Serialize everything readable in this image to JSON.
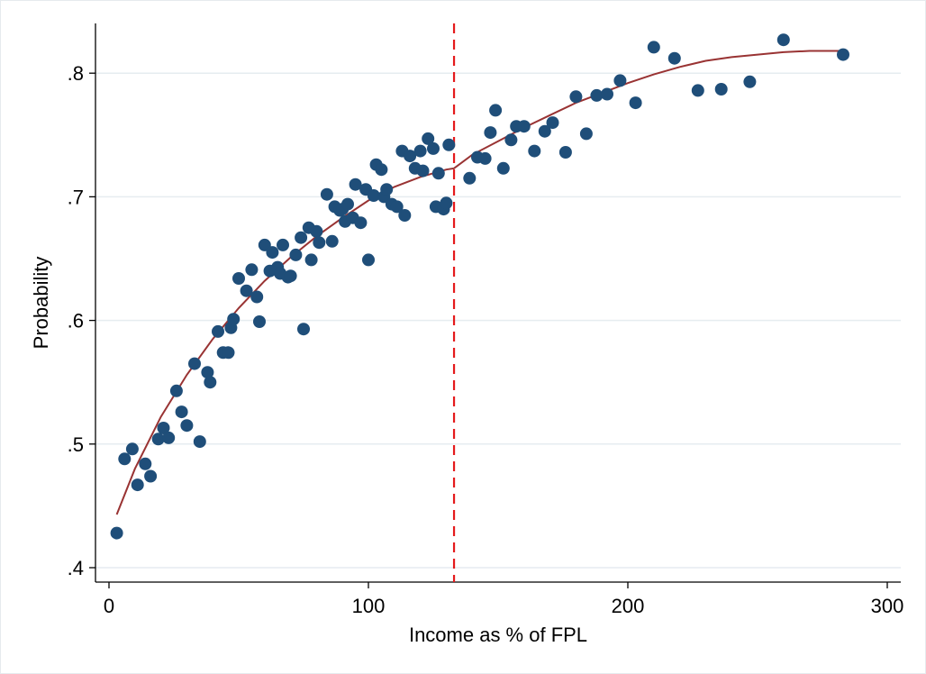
{
  "chart_data": {
    "type": "scatter",
    "title": "",
    "xlabel": "Income as % of FPL",
    "ylabel": "Probability",
    "xlim": [
      -5,
      305
    ],
    "ylim": [
      0.388,
      0.84
    ],
    "x_ticks": [
      0,
      100,
      200,
      300
    ],
    "x_tick_labels": [
      "0",
      "100",
      "200",
      "300"
    ],
    "y_ticks": [
      0.4,
      0.5,
      0.6,
      0.7,
      0.8
    ],
    "y_tick_labels": [
      ".4",
      ".5",
      ".6",
      ".7",
      ".8"
    ],
    "grid": "horizontal",
    "legend": "none",
    "cutoff_x": 133,
    "colors": {
      "points": "#1f4e79",
      "fit_line": "#993333",
      "cutoff_line": "#e41a1c",
      "grid": "#e6ecf0"
    },
    "fit_line": [
      [
        3,
        0.443
      ],
      [
        10,
        0.48
      ],
      [
        20,
        0.522
      ],
      [
        30,
        0.556
      ],
      [
        40,
        0.585
      ],
      [
        50,
        0.61
      ],
      [
        60,
        0.632
      ],
      [
        70,
        0.651
      ],
      [
        80,
        0.668
      ],
      [
        90,
        0.683
      ],
      [
        100,
        0.697
      ],
      [
        110,
        0.708
      ],
      [
        120,
        0.716
      ],
      [
        130,
        0.722
      ],
      [
        133,
        0.723
      ],
      [
        140,
        0.734
      ],
      [
        150,
        0.745
      ],
      [
        160,
        0.756
      ],
      [
        170,
        0.766
      ],
      [
        180,
        0.776
      ],
      [
        190,
        0.784
      ],
      [
        200,
        0.792
      ],
      [
        210,
        0.799
      ],
      [
        220,
        0.805
      ],
      [
        230,
        0.81
      ],
      [
        240,
        0.813
      ],
      [
        250,
        0.815
      ],
      [
        260,
        0.817
      ],
      [
        270,
        0.818
      ],
      [
        283,
        0.818
      ]
    ],
    "series": [
      {
        "points": [
          [
            3,
            0.428
          ],
          [
            6,
            0.488
          ],
          [
            9,
            0.496
          ],
          [
            11,
            0.467
          ],
          [
            14,
            0.484
          ],
          [
            16,
            0.474
          ],
          [
            19,
            0.504
          ],
          [
            21,
            0.513
          ],
          [
            23,
            0.505
          ],
          [
            26,
            0.543
          ],
          [
            28,
            0.526
          ],
          [
            30,
            0.515
          ],
          [
            33,
            0.565
          ],
          [
            35,
            0.502
          ],
          [
            38,
            0.558
          ],
          [
            39,
            0.55
          ],
          [
            42,
            0.591
          ],
          [
            44,
            0.574
          ],
          [
            46,
            0.574
          ],
          [
            47,
            0.594
          ],
          [
            48,
            0.601
          ],
          [
            50,
            0.634
          ],
          [
            53,
            0.624
          ],
          [
            55,
            0.641
          ],
          [
            57,
            0.619
          ],
          [
            58,
            0.599
          ],
          [
            60,
            0.661
          ],
          [
            62,
            0.64
          ],
          [
            63,
            0.655
          ],
          [
            65,
            0.643
          ],
          [
            66,
            0.638
          ],
          [
            67,
            0.661
          ],
          [
            69,
            0.635
          ],
          [
            70,
            0.636
          ],
          [
            72,
            0.653
          ],
          [
            74,
            0.667
          ],
          [
            75,
            0.593
          ],
          [
            77,
            0.675
          ],
          [
            78,
            0.649
          ],
          [
            80,
            0.672
          ],
          [
            81,
            0.663
          ],
          [
            84,
            0.702
          ],
          [
            86,
            0.664
          ],
          [
            87,
            0.692
          ],
          [
            89,
            0.689
          ],
          [
            90,
            0.69
          ],
          [
            91,
            0.68
          ],
          [
            92,
            0.694
          ],
          [
            94,
            0.683
          ],
          [
            95,
            0.71
          ],
          [
            97,
            0.679
          ],
          [
            99,
            0.706
          ],
          [
            100,
            0.649
          ],
          [
            102,
            0.701
          ],
          [
            103,
            0.726
          ],
          [
            105,
            0.722
          ],
          [
            106,
            0.7
          ],
          [
            107,
            0.706
          ],
          [
            109,
            0.694
          ],
          [
            111,
            0.692
          ],
          [
            113,
            0.737
          ],
          [
            114,
            0.685
          ],
          [
            116,
            0.733
          ],
          [
            118,
            0.723
          ],
          [
            120,
            0.737
          ],
          [
            121,
            0.721
          ],
          [
            123,
            0.747
          ],
          [
            125,
            0.739
          ],
          [
            126,
            0.692
          ],
          [
            127,
            0.719
          ],
          [
            129,
            0.69
          ],
          [
            130,
            0.695
          ],
          [
            131,
            0.742
          ],
          [
            139,
            0.715
          ],
          [
            142,
            0.732
          ],
          [
            145,
            0.731
          ],
          [
            147,
            0.752
          ],
          [
            149,
            0.77
          ],
          [
            152,
            0.723
          ],
          [
            155,
            0.746
          ],
          [
            157,
            0.757
          ],
          [
            160,
            0.757
          ],
          [
            164,
            0.737
          ],
          [
            168,
            0.753
          ],
          [
            171,
            0.76
          ],
          [
            176,
            0.736
          ],
          [
            180,
            0.781
          ],
          [
            184,
            0.751
          ],
          [
            188,
            0.782
          ],
          [
            192,
            0.783
          ],
          [
            197,
            0.794
          ],
          [
            203,
            0.776
          ],
          [
            210,
            0.821
          ],
          [
            218,
            0.812
          ],
          [
            227,
            0.786
          ],
          [
            236,
            0.787
          ],
          [
            247,
            0.793
          ],
          [
            260,
            0.827
          ],
          [
            283,
            0.815
          ]
        ]
      }
    ]
  }
}
